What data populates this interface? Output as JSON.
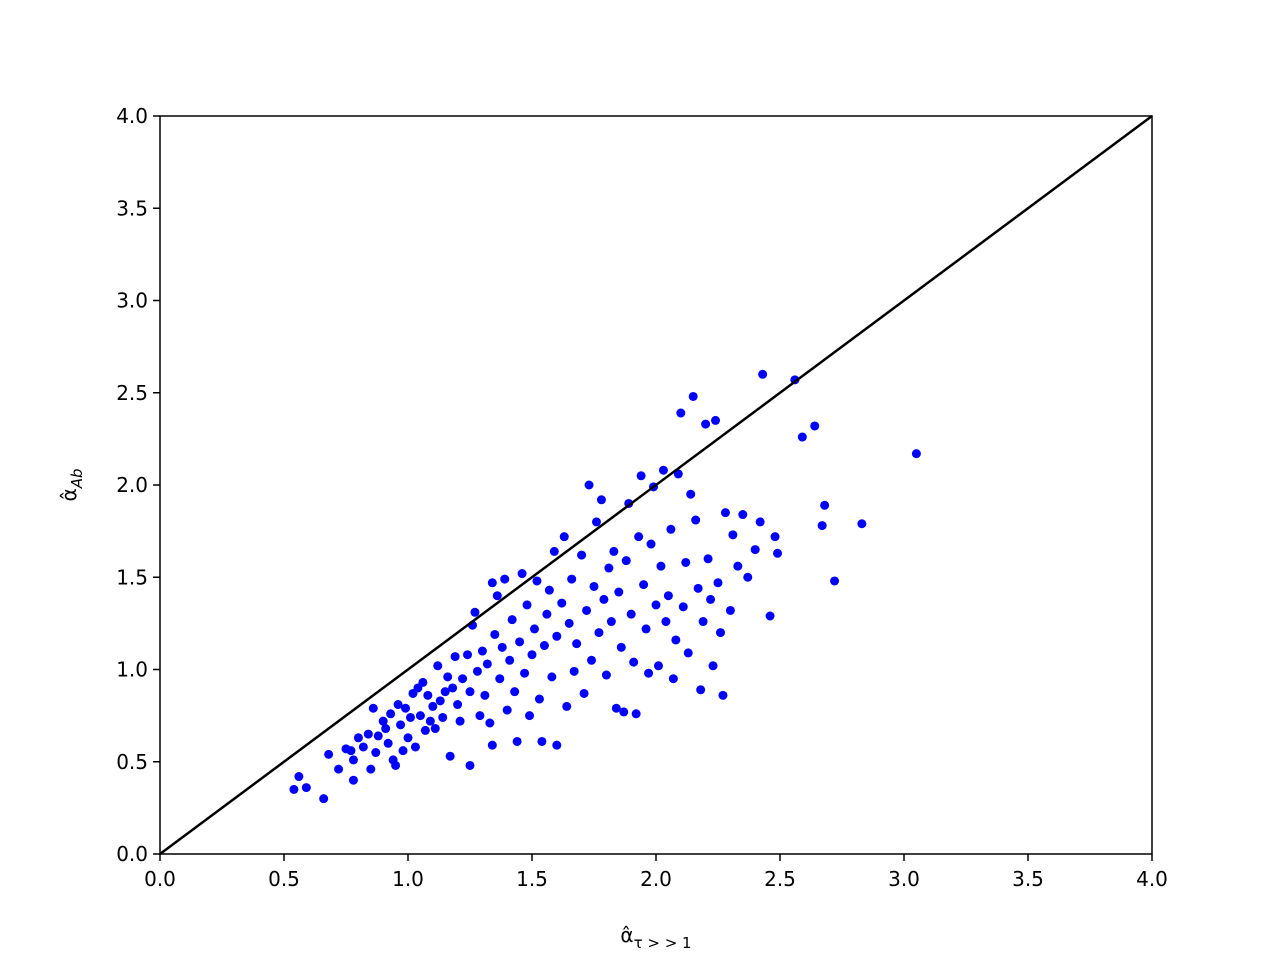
{
  "chart_data": {
    "type": "scatter",
    "xlabel": {
      "symbol": "α̂",
      "subscript": "τ > > 1"
    },
    "ylabel": {
      "symbol": "α̂",
      "subscript": "Ab"
    },
    "xlim": [
      0,
      4
    ],
    "ylim": [
      0,
      4
    ],
    "xticks": [
      {
        "value": 0,
        "label": "0.0"
      },
      0.5,
      {
        "value": 1,
        "label": "1.0"
      },
      1.5,
      {
        "value": 2,
        "label": "2.0"
      },
      2.5,
      {
        "value": 3,
        "label": "3.0"
      },
      3.5,
      {
        "value": 4,
        "label": "4.0"
      }
    ],
    "yticks": [
      {
        "value": 0,
        "label": "0.0"
      },
      0.5,
      {
        "value": 1,
        "label": "1.0"
      },
      1.5,
      {
        "value": 2,
        "label": "2.0"
      },
      2.5,
      {
        "value": 3,
        "label": "3.0"
      },
      3.5,
      {
        "value": 4,
        "label": "4.0"
      }
    ],
    "color": "#0000ff",
    "x": [
      0.54,
      0.56,
      0.59,
      0.66,
      0.68,
      0.72,
      0.75,
      0.77,
      0.78,
      0.78,
      0.8,
      0.82,
      0.84,
      0.85,
      0.86,
      0.87,
      0.88,
      0.9,
      0.91,
      0.92,
      0.93,
      0.94,
      0.95,
      0.96,
      0.97,
      0.98,
      0.99,
      1.0,
      1.01,
      1.02,
      1.03,
      1.04,
      1.05,
      1.06,
      1.07,
      1.08,
      1.09,
      1.1,
      1.11,
      1.12,
      1.13,
      1.14,
      1.15,
      1.16,
      1.17,
      1.18,
      1.19,
      1.2,
      1.21,
      1.22,
      1.24,
      1.25,
      1.25,
      1.26,
      1.27,
      1.28,
      1.29,
      1.3,
      1.31,
      1.32,
      1.33,
      1.34,
      1.34,
      1.35,
      1.36,
      1.37,
      1.38,
      1.39,
      1.4,
      1.41,
      1.42,
      1.43,
      1.44,
      1.45,
      1.46,
      1.47,
      1.48,
      1.49,
      1.5,
      1.51,
      1.52,
      1.53,
      1.54,
      1.55,
      1.56,
      1.57,
      1.58,
      1.59,
      1.6,
      1.6,
      1.62,
      1.63,
      1.64,
      1.65,
      1.66,
      1.67,
      1.68,
      1.7,
      1.71,
      1.72,
      1.73,
      1.74,
      1.75,
      1.76,
      1.77,
      1.78,
      1.79,
      1.8,
      1.81,
      1.82,
      1.83,
      1.84,
      1.85,
      1.86,
      1.87,
      1.88,
      1.89,
      1.9,
      1.91,
      1.92,
      1.93,
      1.94,
      1.95,
      1.96,
      1.97,
      1.98,
      1.99,
      2.0,
      2.01,
      2.02,
      2.03,
      2.04,
      2.05,
      2.06,
      2.07,
      2.08,
      2.09,
      2.1,
      2.11,
      2.12,
      2.13,
      2.14,
      2.15,
      2.16,
      2.17,
      2.18,
      2.19,
      2.2,
      2.21,
      2.22,
      2.23,
      2.24,
      2.25,
      2.26,
      2.27,
      2.28,
      2.3,
      2.31,
      2.33,
      2.35,
      2.37,
      2.4,
      2.42,
      2.43,
      2.46,
      2.48,
      2.49,
      2.56,
      2.59,
      2.64,
      2.67,
      2.68,
      2.72,
      2.83,
      3.05
    ],
    "values": [
      0.35,
      0.42,
      0.36,
      0.3,
      0.54,
      0.46,
      0.57,
      0.56,
      0.4,
      0.51,
      0.63,
      0.58,
      0.65,
      0.46,
      0.79,
      0.55,
      0.64,
      0.72,
      0.68,
      0.6,
      0.76,
      0.51,
      0.48,
      0.81,
      0.7,
      0.56,
      0.79,
      0.63,
      0.74,
      0.87,
      0.58,
      0.9,
      0.75,
      0.93,
      0.67,
      0.86,
      0.72,
      0.8,
      0.68,
      1.02,
      0.83,
      0.74,
      0.88,
      0.96,
      0.53,
      0.9,
      1.07,
      0.81,
      0.72,
      0.95,
      1.08,
      0.48,
      0.88,
      1.24,
      1.31,
      0.99,
      0.75,
      1.1,
      0.86,
      1.03,
      0.71,
      0.59,
      1.47,
      1.19,
      1.4,
      0.95,
      1.12,
      1.49,
      0.78,
      1.05,
      1.27,
      0.88,
      0.61,
      1.15,
      1.52,
      0.98,
      1.35,
      0.75,
      1.08,
      1.22,
      1.48,
      0.84,
      0.61,
      1.13,
      1.3,
      1.43,
      0.96,
      1.64,
      0.59,
      1.18,
      1.36,
      1.72,
      0.8,
      1.25,
      1.49,
      0.99,
      1.14,
      1.62,
      0.87,
      1.32,
      2.0,
      1.05,
      1.45,
      1.8,
      1.2,
      1.92,
      1.38,
      0.97,
      1.55,
      1.26,
      1.64,
      0.79,
      1.42,
      1.12,
      0.77,
      1.59,
      1.9,
      1.3,
      1.04,
      0.76,
      1.72,
      2.05,
      1.46,
      1.22,
      0.98,
      1.68,
      1.99,
      1.35,
      1.02,
      1.56,
      2.08,
      1.26,
      1.4,
      1.76,
      0.95,
      1.16,
      2.06,
      2.39,
      1.34,
      1.58,
      1.09,
      1.95,
      2.48,
      1.81,
      1.44,
      0.89,
      1.26,
      2.33,
      1.6,
      1.38,
      1.02,
      2.35,
      1.47,
      1.2,
      0.86,
      1.85,
      1.32,
      1.73,
      1.56,
      1.84,
      1.5,
      1.65,
      1.8,
      2.6,
      1.29,
      1.72,
      1.63,
      2.57,
      2.26,
      2.32,
      1.78,
      1.89,
      1.48,
      1.79,
      2.17
    ],
    "reference_line": {
      "x": [
        0,
        4
      ],
      "values": [
        0,
        4
      ],
      "color": "#000000"
    }
  }
}
